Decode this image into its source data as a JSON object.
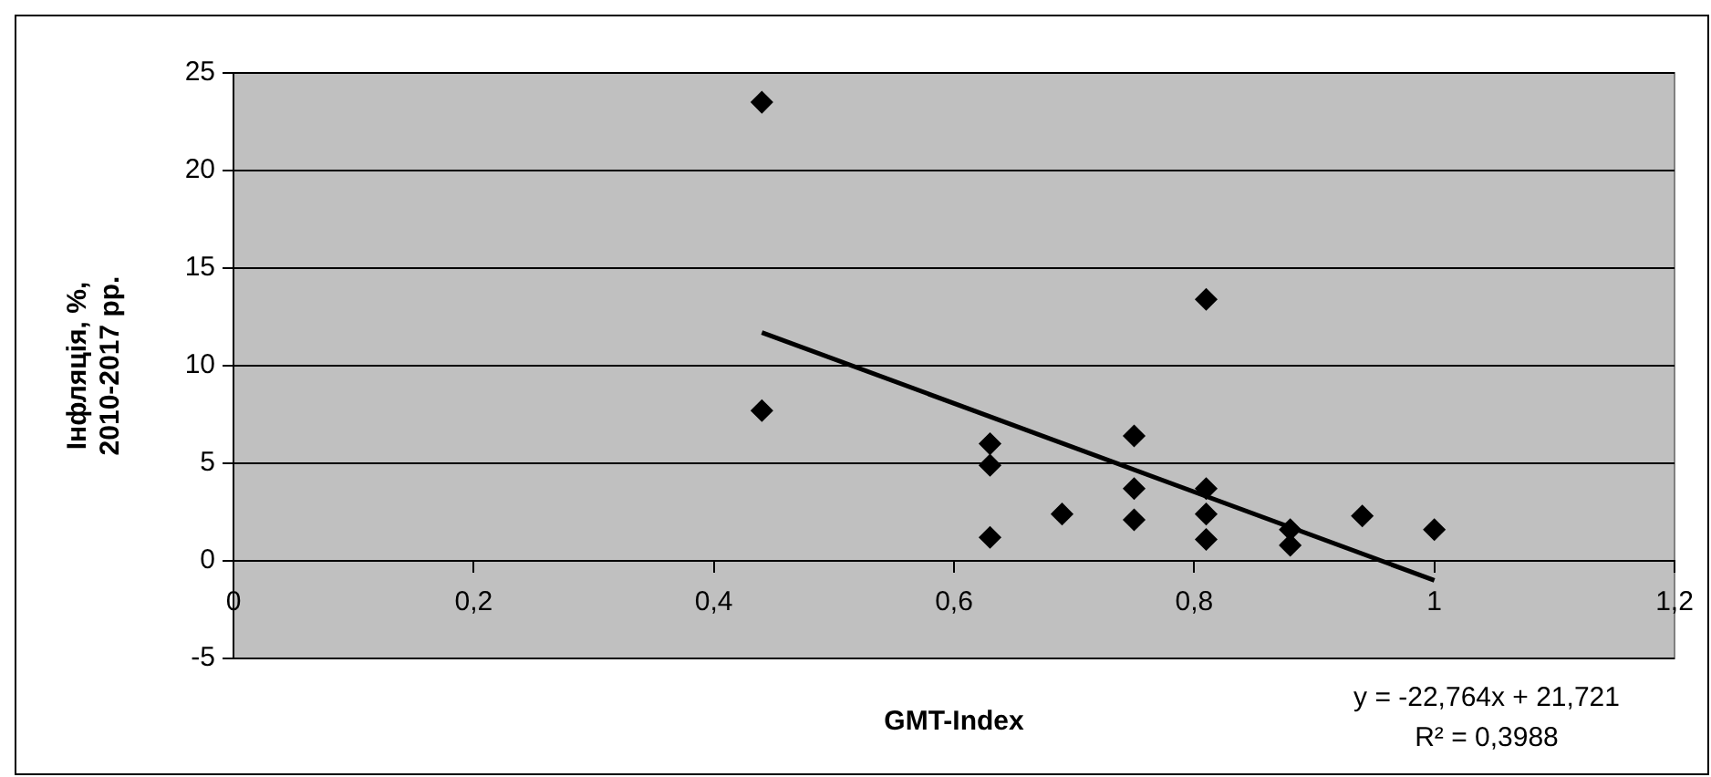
{
  "chart_data": {
    "type": "scatter",
    "xlabel": "GMT-Index",
    "ylabel": "Інфляція, %,\n2010-2017 рр.",
    "series": [
      {
        "color": "#000000",
        "marker": "diamond",
        "x": [
          0.44,
          0.44,
          0.63,
          0.63,
          0.63,
          0.69,
          0.75,
          0.75,
          0.75,
          0.81,
          0.81,
          0.81,
          0.81,
          0.88,
          0.88,
          0.94,
          1.0
        ],
        "values": [
          23.5,
          7.7,
          6.0,
          4.9,
          1.2,
          2.4,
          6.4,
          3.7,
          2.1,
          13.4,
          3.7,
          2.4,
          1.1,
          1.6,
          0.8,
          2.3,
          1.6
        ]
      },
      {
        "type": "line",
        "color": "#000000",
        "marker": "none",
        "x": [
          0.44,
          1.0
        ],
        "values": [
          11.7,
          -1.0
        ]
      }
    ],
    "xlim": [
      0,
      1.2
    ],
    "xticks": [
      0,
      {
        "value": 0.2,
        "label": "0,2"
      },
      {
        "value": 0.4,
        "label": "0,4"
      },
      {
        "value": 0.6,
        "label": "0,6"
      },
      {
        "value": 0.8,
        "label": "0,8"
      },
      1,
      {
        "value": 1.2,
        "label": "1,2"
      }
    ],
    "ylim": [
      -5,
      25
    ],
    "yticks": [
      -5,
      0,
      5,
      10,
      15,
      20,
      25
    ],
    "grid": "y",
    "legend": false,
    "annotations": [
      "y = -22,764x + 21,721",
      "R² = 0,3988"
    ]
  }
}
